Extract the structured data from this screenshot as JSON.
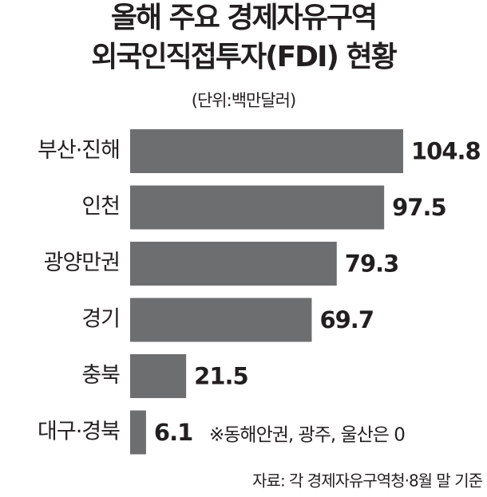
{
  "chart_data": {
    "type": "bar",
    "orientation": "horizontal",
    "title": [
      "올해 주요 경제자유구역",
      "외국인직접투자(FDI) 현황"
    ],
    "subtitle": "(단위:백만달러)",
    "categories": [
      "부산·진해",
      "인천",
      "광양만권",
      "경기",
      "충북",
      "대구·경북"
    ],
    "values": [
      104.8,
      97.5,
      79.3,
      69.7,
      21.5,
      6.1
    ],
    "color": "#6d6e70",
    "note": "※동해안권, 광주, 울산은 0",
    "source": "자료: 각 경제자유구역청·8월 말 기준"
  }
}
